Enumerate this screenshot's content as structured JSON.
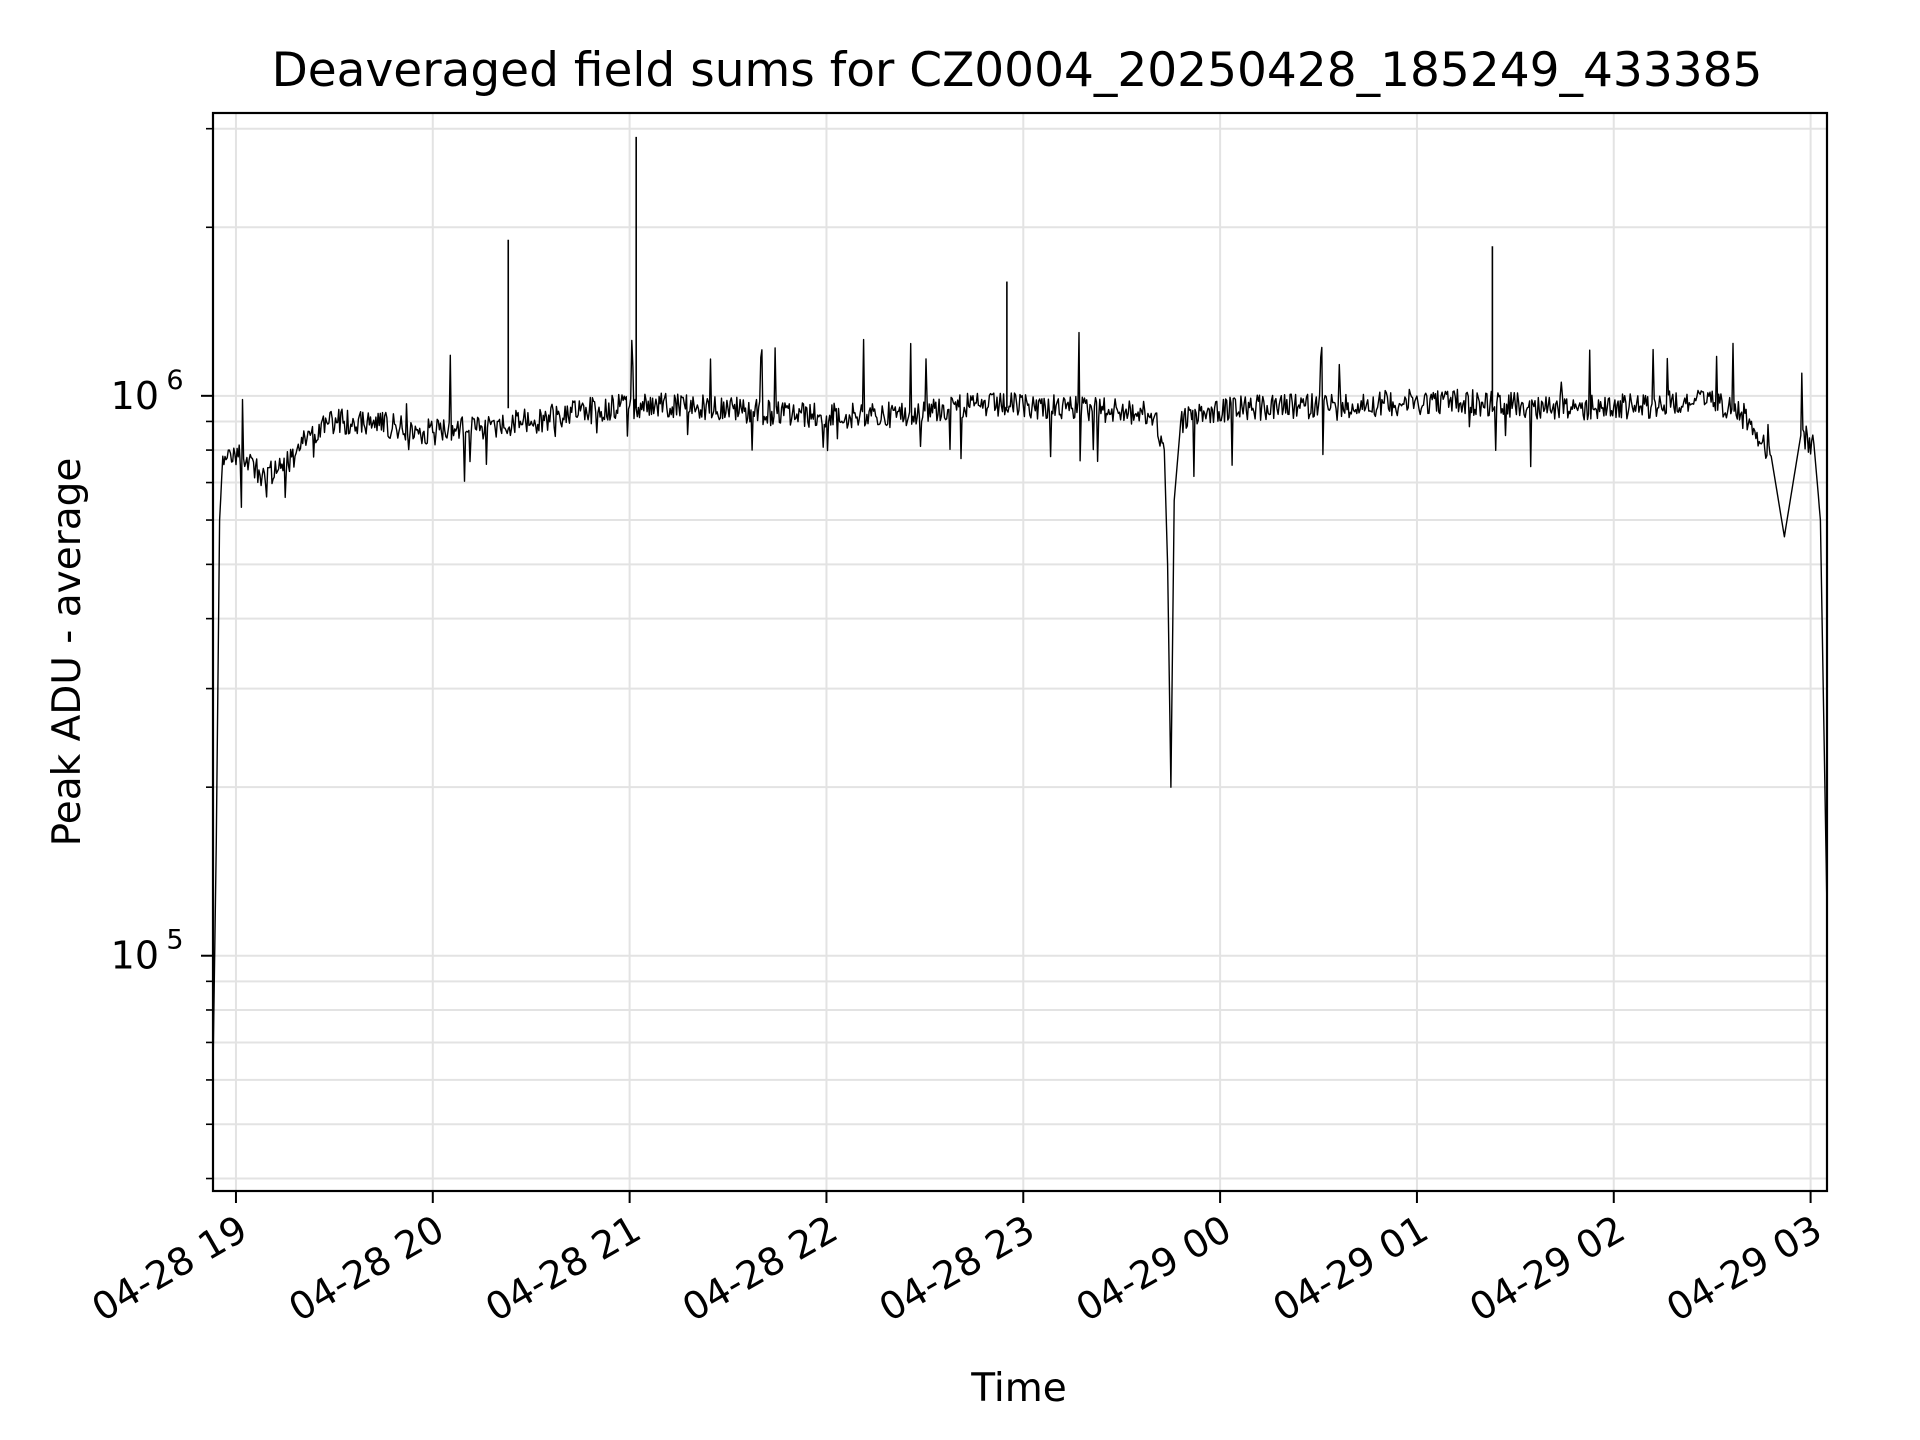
{
  "chart_data": {
    "type": "line",
    "title": "Deaveraged field sums for CZ0004_20250428_185249_433385",
    "xlabel": "Time",
    "ylabel": "Peak ADU - average",
    "x_scale": "time",
    "y_scale": "log",
    "xlim": [
      "2025-04-28 18:53",
      "2025-04-29 03:05"
    ],
    "ylim": [
      38000,
      3200000
    ],
    "x_ticks": [
      {
        "value": "2025-04-28 19:00",
        "label": "04-28 19"
      },
      {
        "value": "2025-04-28 20:00",
        "label": "04-28 20"
      },
      {
        "value": "2025-04-28 21:00",
        "label": "04-28 21"
      },
      {
        "value": "2025-04-28 22:00",
        "label": "04-28 22"
      },
      {
        "value": "2025-04-28 23:00",
        "label": "04-28 23"
      },
      {
        "value": "2025-04-29 00:00",
        "label": "04-29 00"
      },
      {
        "value": "2025-04-29 01:00",
        "label": "04-29 01"
      },
      {
        "value": "2025-04-29 02:00",
        "label": "04-29 02"
      },
      {
        "value": "2025-04-29 03:00",
        "label": "04-29 03"
      }
    ],
    "y_ticks": [
      {
        "value": 100000,
        "base": "10",
        "exp": "5"
      },
      {
        "value": 1000000,
        "base": "10",
        "exp": "6"
      }
    ],
    "grid": true,
    "line_color": "#000000",
    "series": [
      {
        "x": [
          "2025-04-28 18:53",
          "2025-04-28 18:54",
          "2025-04-28 18:55",
          "2025-04-28 18:56",
          "2025-04-28 18:58",
          "2025-04-28 19:03",
          "2025-04-28 19:08",
          "2025-04-28 19:13",
          "2025-04-28 19:18",
          "2025-04-28 19:23",
          "2025-04-28 19:28",
          "2025-04-28 19:33",
          "2025-04-28 19:40",
          "2025-04-28 19:50",
          "2025-04-28 20:00",
          "2025-04-28 20:15",
          "2025-04-28 20:30",
          "2025-04-28 20:45",
          "2025-04-28 21:00",
          "2025-04-28 21:15",
          "2025-04-28 21:30",
          "2025-04-28 21:45",
          "2025-04-28 22:00",
          "2025-04-28 22:15",
          "2025-04-28 22:30",
          "2025-04-28 22:45",
          "2025-04-28 23:00",
          "2025-04-28 23:15",
          "2025-04-28 23:30",
          "2025-04-28 23:40",
          "2025-04-28 23:43",
          "2025-04-28 23:44",
          "2025-04-28 23:45",
          "2025-04-28 23:46",
          "2025-04-28 23:48",
          "2025-04-28 23:55",
          "2025-04-29 00:10",
          "2025-04-29 00:30",
          "2025-04-29 00:50",
          "2025-04-29 01:10",
          "2025-04-29 01:30",
          "2025-04-29 01:50",
          "2025-04-29 02:10",
          "2025-04-29 02:25",
          "2025-04-29 02:35",
          "2025-04-29 02:42",
          "2025-04-29 02:48",
          "2025-04-29 02:52",
          "2025-04-29 02:57",
          "2025-04-29 03:01",
          "2025-04-29 03:03",
          "2025-04-29 03:05"
        ],
        "y": [
          62000,
          160000,
          600000,
          780000,
          800000,
          760000,
          720000,
          740000,
          780000,
          860000,
          890000,
          900000,
          900000,
          880000,
          860000,
          880000,
          900000,
          940000,
          960000,
          960000,
          950000,
          930000,
          920000,
          920000,
          940000,
          960000,
          960000,
          950000,
          940000,
          920000,
          800000,
          500000,
          200000,
          650000,
          900000,
          940000,
          950000,
          960000,
          970000,
          980000,
          960000,
          950000,
          960000,
          980000,
          960000,
          900000,
          780000,
          560000,
          850000,
          820000,
          600000,
          120000
        ]
      }
    ],
    "annotations": [
      {
        "x": "2025-04-28 20:23",
        "y": 1900000
      },
      {
        "x": "2025-04-28 21:02",
        "y": 2900000
      },
      {
        "x": "2025-04-28 22:55",
        "y": 1600000
      },
      {
        "x": "2025-04-29 01:23",
        "y": 1850000
      }
    ]
  }
}
